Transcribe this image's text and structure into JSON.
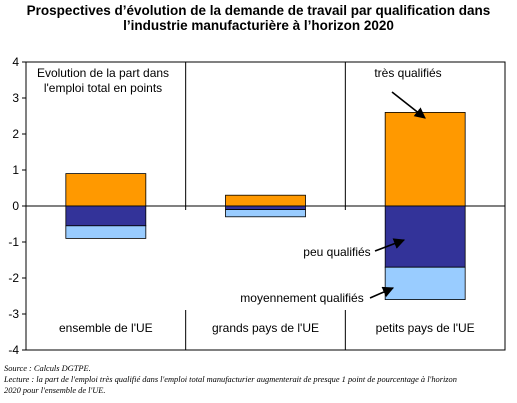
{
  "title_lines": [
    "Prospectives d’évolution de la demande de travail par qualification dans",
    "l’industrie manufacturière à l’horizon 2020"
  ],
  "chart_data": {
    "type": "bar",
    "stacked": true,
    "categories": [
      "ensemble de l'UE",
      "grands pays de l'UE",
      "petits pays de l'UE"
    ],
    "series": [
      {
        "name": "très qualifiés",
        "values": [
          0.9,
          0.3,
          2.6
        ],
        "color": "#FF9900"
      },
      {
        "name": "peu qualifiés",
        "values": [
          -0.55,
          -0.1,
          -1.7
        ],
        "color": "#333399"
      },
      {
        "name": "moyennement qualifiés",
        "values": [
          -0.35,
          -0.2,
          -0.9
        ],
        "color": "#99CCFF"
      }
    ],
    "ylim": [
      -4,
      4
    ],
    "yticks": [
      "-4",
      "-3",
      "-2",
      "-1",
      "0",
      "1",
      "2",
      "3",
      "4"
    ],
    "ylabel_lines": [
      "Evolution de la part dans",
      "l'emploi total en points"
    ],
    "grid": false,
    "legend": "annotations"
  },
  "footer": {
    "source": "Source : Calculs DGTPE.",
    "lecture_lines": [
      "Lecture : la part de l'emploi très qualifié dans l'emploi total manufacturier augmenterait de presque 1 point de pourcentage à l'horizon",
      "2020 pour l'ensemble de l'UE."
    ]
  }
}
